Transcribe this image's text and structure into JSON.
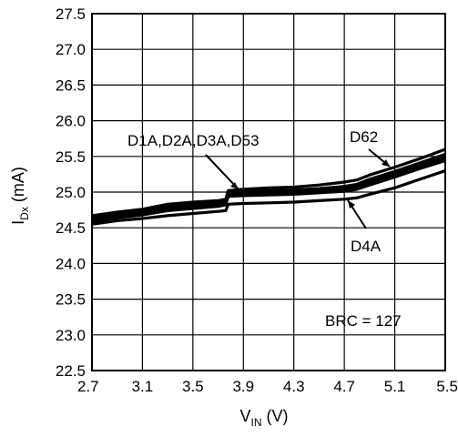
{
  "chart_data": {
    "type": "line",
    "xlabel": {
      "main": "V",
      "sub": "IN",
      "unit": " (V)"
    },
    "ylabel": {
      "main": "I",
      "sub": "Dx",
      "unit": " (mA)"
    },
    "xlim": [
      2.7,
      5.5
    ],
    "ylim": [
      22.5,
      27.5
    ],
    "xticks": [
      "2.7",
      "3.1",
      "3.5",
      "3.9",
      "4.3",
      "4.7",
      "5.1",
      "5.5"
    ],
    "yticks": [
      "27.5",
      "27.0",
      "26.5",
      "26.0",
      "25.5",
      "25.0",
      "24.5",
      "24.0",
      "23.5",
      "23.0",
      "22.5"
    ],
    "grid": true,
    "series": [
      {
        "name": "D62",
        "x": [
          2.7,
          2.9,
          3.1,
          3.3,
          3.5,
          3.7,
          3.76,
          3.78,
          3.9,
          4.1,
          4.3,
          4.5,
          4.7,
          4.8,
          4.9,
          5.1,
          5.3,
          5.5
        ],
        "values": [
          24.67,
          24.72,
          24.76,
          24.83,
          24.86,
          24.88,
          24.9,
          25.02,
          25.04,
          25.06,
          25.07,
          25.1,
          25.14,
          25.17,
          25.24,
          25.35,
          25.47,
          25.6
        ]
      },
      {
        "name": "D1A",
        "x": [
          2.7,
          2.9,
          3.1,
          3.3,
          3.5,
          3.7,
          3.76,
          3.78,
          3.9,
          4.1,
          4.3,
          4.5,
          4.7,
          4.8,
          4.9,
          5.1,
          5.3,
          5.5
        ],
        "values": [
          24.64,
          24.7,
          24.74,
          24.8,
          24.83,
          24.86,
          24.88,
          25.0,
          25.01,
          25.02,
          25.03,
          25.05,
          25.08,
          25.11,
          25.18,
          25.29,
          25.41,
          25.53
        ]
      },
      {
        "name": "D2A",
        "x": [
          2.7,
          2.9,
          3.1,
          3.3,
          3.5,
          3.7,
          3.76,
          3.78,
          3.9,
          4.1,
          4.3,
          4.5,
          4.7,
          4.8,
          4.9,
          5.1,
          5.3,
          5.5
        ],
        "values": [
          24.62,
          24.68,
          24.72,
          24.78,
          24.81,
          24.84,
          24.86,
          24.98,
          24.99,
          25.0,
          25.01,
          25.03,
          25.06,
          25.09,
          25.16,
          25.27,
          25.39,
          25.5
        ]
      },
      {
        "name": "D3A",
        "x": [
          2.7,
          2.9,
          3.1,
          3.3,
          3.5,
          3.7,
          3.76,
          3.78,
          3.9,
          4.1,
          4.3,
          4.5,
          4.7,
          4.8,
          4.9,
          5.1,
          5.3,
          5.5
        ],
        "values": [
          24.6,
          24.66,
          24.7,
          24.76,
          24.79,
          24.82,
          24.84,
          24.96,
          24.97,
          24.98,
          24.99,
          25.01,
          25.04,
          25.07,
          25.13,
          25.24,
          25.36,
          25.47
        ]
      },
      {
        "name": "D53",
        "x": [
          2.7,
          2.9,
          3.1,
          3.3,
          3.5,
          3.7,
          3.76,
          3.78,
          3.9,
          4.1,
          4.3,
          4.5,
          4.7,
          4.8,
          4.9,
          5.1,
          5.3,
          5.5
        ],
        "values": [
          24.58,
          24.64,
          24.68,
          24.74,
          24.77,
          24.8,
          24.82,
          24.94,
          24.95,
          24.96,
          24.97,
          24.99,
          25.01,
          25.04,
          25.1,
          25.21,
          25.33,
          25.44
        ]
      },
      {
        "name": "D4A",
        "x": [
          2.7,
          2.9,
          3.1,
          3.3,
          3.5,
          3.7,
          3.76,
          3.78,
          3.9,
          4.1,
          4.3,
          4.5,
          4.7,
          4.8,
          4.9,
          5.1,
          5.3,
          5.5
        ],
        "values": [
          24.55,
          24.6,
          24.63,
          24.67,
          24.7,
          24.73,
          24.74,
          24.83,
          24.84,
          24.85,
          24.86,
          24.88,
          24.9,
          24.92,
          24.97,
          25.06,
          25.18,
          25.3
        ]
      }
    ],
    "annotations": {
      "group_label": "D1A,D2A,D3A,D53",
      "d62_label": "D62",
      "d4a_label": "D4A",
      "brc_label": "BRC = 127"
    }
  }
}
